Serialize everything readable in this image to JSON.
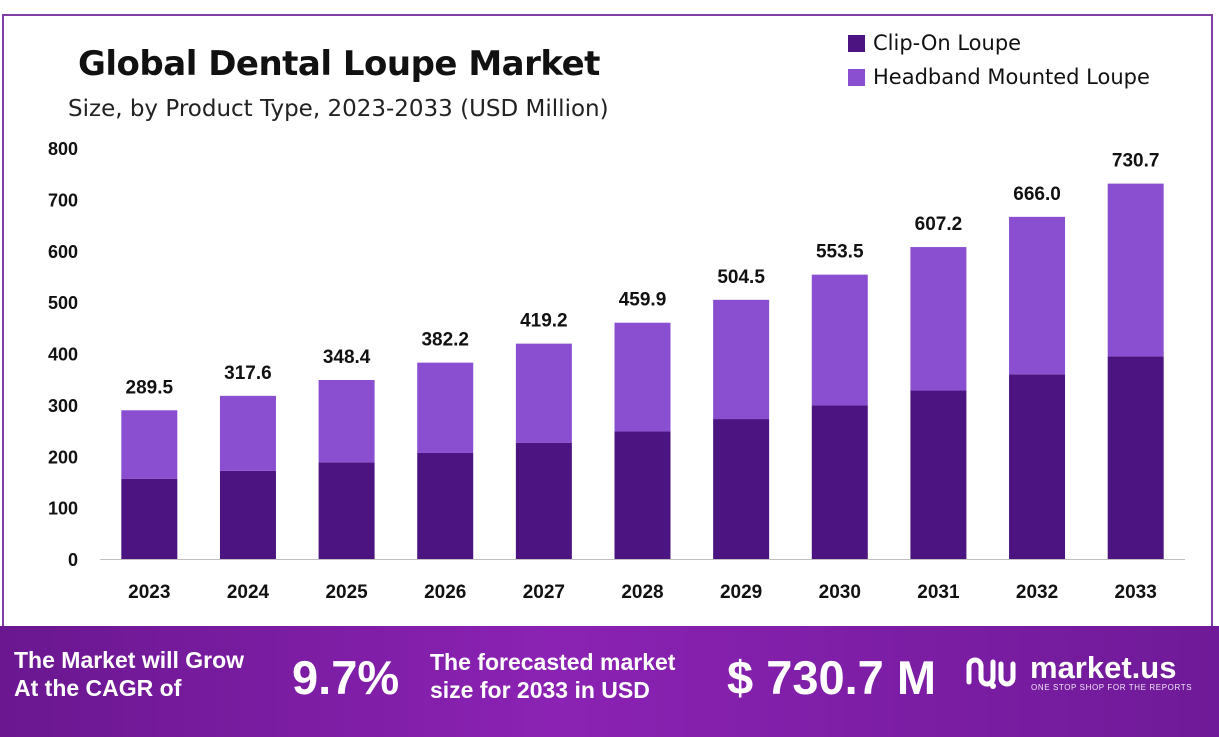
{
  "chart_data": {
    "type": "bar",
    "stacked": true,
    "title": "Global Dental Loupe Market",
    "subtitle": "Size, by Product Type, 2023-2033 (USD Million)",
    "categories": [
      "2023",
      "2024",
      "2025",
      "2026",
      "2027",
      "2028",
      "2029",
      "2030",
      "2031",
      "2032",
      "2033"
    ],
    "series": [
      {
        "name": "Clip-On Loupe",
        "color": "#4b1480",
        "values": [
          156.3,
          171.5,
          188.1,
          206.4,
          226.4,
          248.3,
          272.4,
          298.9,
          327.9,
          359.6,
          394.6
        ]
      },
      {
        "name": "Headband Mounted Loupe",
        "color": "#8a4fd0",
        "values": [
          133.2,
          146.1,
          160.3,
          175.8,
          192.8,
          211.6,
          232.1,
          254.6,
          279.3,
          306.4,
          336.1
        ]
      }
    ],
    "totals": [
      "289.5",
      "317.6",
      "348.4",
      "382.2",
      "419.2",
      "459.9",
      "504.5",
      "553.5",
      "607.2",
      "666.0",
      "730.7"
    ],
    "yticks": [
      "0",
      "100",
      "200",
      "300",
      "400",
      "500",
      "600",
      "700",
      "800"
    ],
    "ylim": [
      0,
      800
    ],
    "xlabel": "",
    "ylabel": "",
    "legend_position": "top-right"
  },
  "banner": {
    "lead_line1": "The Market will Grow",
    "lead_line2": "At the CAGR of",
    "cagr": "9.7%",
    "forecast_line1": "The forecasted market",
    "forecast_line2": "size for 2033 in USD",
    "forecast_value": "$ 730.7 M",
    "brand": "market.us",
    "tagline": "ONE STOP SHOP FOR THE REPORTS"
  },
  "colors": {
    "accent": "#7d3fa3",
    "banner": "#7a1fa6"
  }
}
